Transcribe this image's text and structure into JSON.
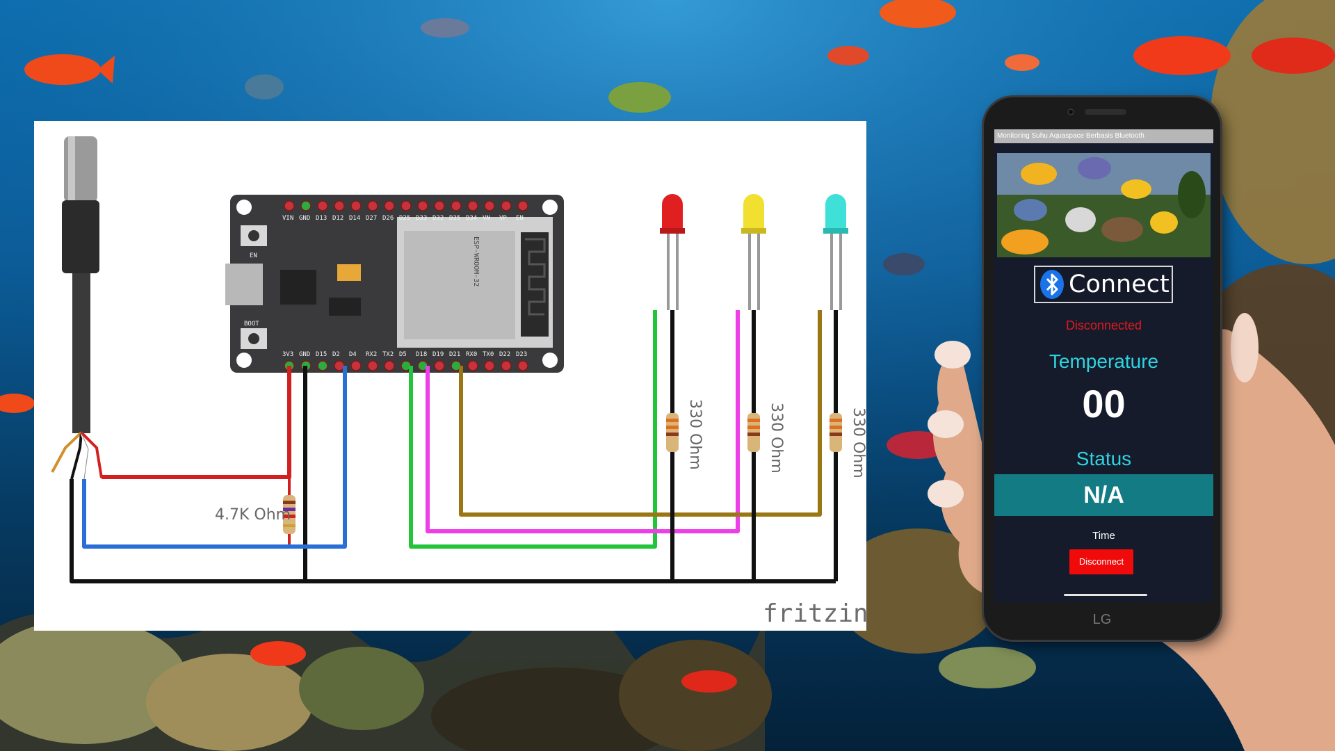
{
  "diagram": {
    "top_pin_labels": [
      "VIN",
      "GND",
      "D13",
      "D12",
      "D14",
      "D27",
      "D26",
      "D25",
      "D33",
      "D32",
      "D35",
      "D34",
      "VN",
      "VP",
      "EN"
    ],
    "bottom_pin_labels": [
      "3V3",
      "GND",
      "D15",
      "D2",
      "D4",
      "RX2",
      "TX2",
      "D5",
      "D18",
      "D19",
      "D21",
      "RX0",
      "TX0",
      "D22",
      "D23"
    ],
    "button_en_label": "EN",
    "button_boot_label": "BOOT",
    "module_text": "ESP-WROOM-32",
    "sensor_resistor_label": "4.7K Ohm",
    "led_resistor_labels": [
      "330 Ohm",
      "330 Ohm",
      "330 Ohm"
    ],
    "led_colors": [
      "#e02020",
      "#f1e030",
      "#3fe0d8"
    ],
    "watermark": "fritzing"
  },
  "phone": {
    "app_title": "Monitoring Suhu Aquaspace Berbasis Bluetooth",
    "connect_label": "Connect",
    "connection_status": "Disconnected",
    "temperature_label": "Temperature",
    "temperature_value": "00",
    "status_label": "Status",
    "status_value": "N/A",
    "time_label": "Time",
    "disconnect_label": "Disconnect",
    "brand": "LG"
  },
  "colors": {
    "accent_cyan": "#2fd3df",
    "status_teal": "#137b84",
    "danger_red": "#f00a0a",
    "wire_red": "#d22020",
    "wire_black": "#111111",
    "wire_blue": "#2a6fd6",
    "wire_green": "#22c43a",
    "wire_magenta": "#ee3ee8",
    "wire_gold": "#9a7614"
  }
}
